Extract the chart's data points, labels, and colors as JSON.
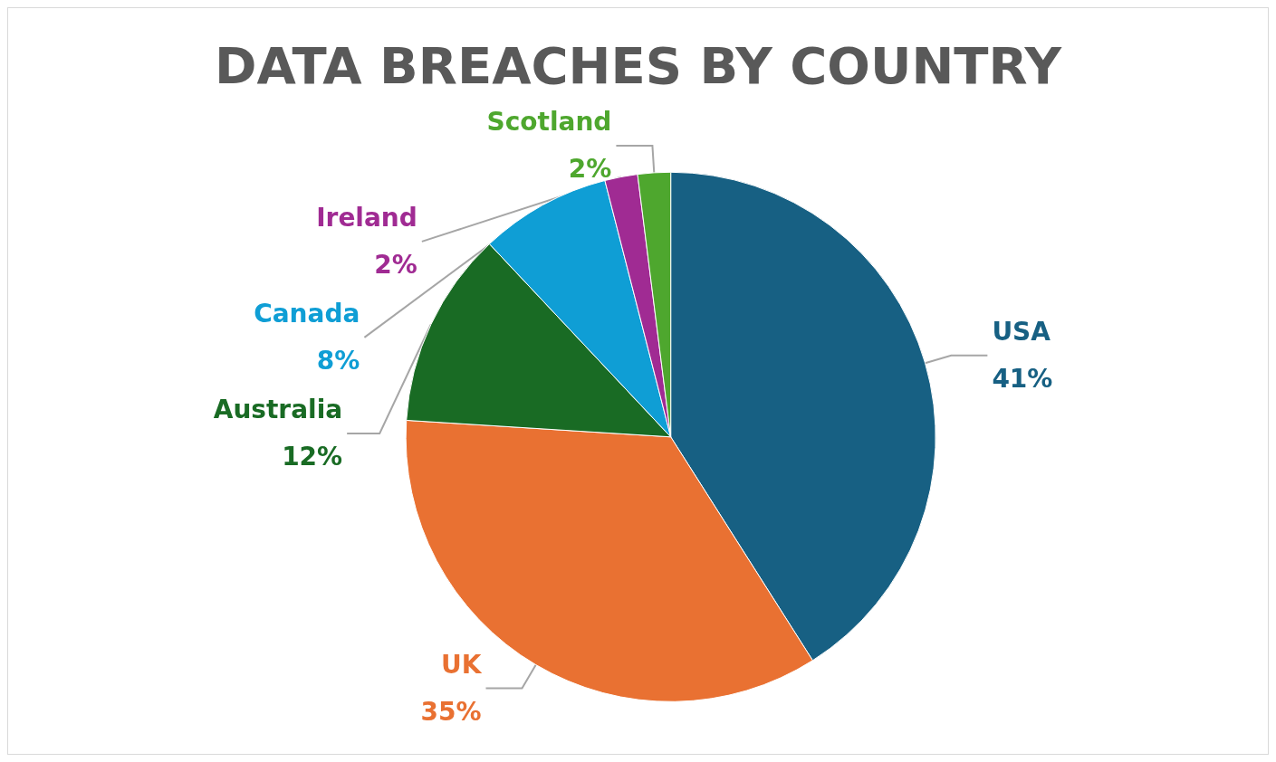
{
  "chart_data": {
    "type": "pie",
    "title": "DATA BREACHES BY COUNTRY",
    "categories": [
      "USA",
      "UK",
      "Australia",
      "Canada",
      "Ireland",
      "Scotland"
    ],
    "values": [
      41,
      35,
      12,
      8,
      2,
      2
    ],
    "colors": [
      "#176083",
      "#e97132",
      "#196b24",
      "#0f9ed5",
      "#a02b93",
      "#4ea72e"
    ],
    "value_labels": [
      "41%",
      "35%",
      "12%",
      "8%",
      "2%",
      "2%"
    ],
    "legend": false
  }
}
